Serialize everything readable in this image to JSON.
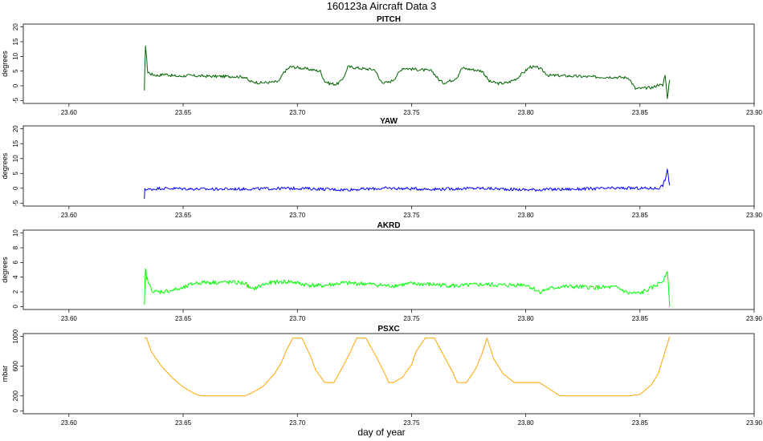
{
  "figure": {
    "title": "160123a   Aircraft Data 3",
    "xlabel": "day of year"
  },
  "chart_data": [
    {
      "type": "line",
      "title": "PITCH",
      "ylabel": "degrees",
      "color": "#006400",
      "xlim": [
        23.58,
        23.9
      ],
      "ylim": [
        -6,
        21
      ],
      "yticks": [
        -5,
        0,
        5,
        10,
        15,
        20
      ],
      "xticks": [
        23.6,
        23.65,
        23.7,
        23.75,
        23.8,
        23.85,
        23.9
      ],
      "noise": 0.5,
      "series": [
        {
          "x": [
            23.633,
            23.6335,
            23.634,
            23.6345,
            23.635,
            23.636,
            23.637,
            23.639,
            23.642,
            23.645,
            23.648,
            23.652,
            23.658,
            23.665,
            23.672,
            23.677,
            23.679,
            23.684,
            23.689,
            23.692,
            23.693,
            23.694,
            23.697,
            23.702,
            23.706,
            23.71,
            23.712,
            23.714,
            23.717,
            23.719,
            23.721,
            23.722,
            23.725,
            23.729,
            23.734,
            23.736,
            23.738,
            23.74,
            23.742,
            23.744,
            23.746,
            23.747,
            23.75,
            23.755,
            23.759,
            23.762,
            23.764,
            23.766,
            23.768,
            23.77,
            23.771,
            23.772,
            23.774,
            23.777,
            23.781,
            23.784,
            23.788,
            23.792,
            23.796,
            23.802,
            23.806,
            23.81,
            23.813,
            23.82,
            23.83,
            23.838,
            23.843,
            23.845,
            23.848,
            23.852,
            23.856,
            23.858,
            23.86,
            23.861,
            23.862,
            23.863
          ],
          "y": [
            -2,
            14,
            9,
            4.5,
            4.5,
            4,
            3.8,
            3.5,
            4,
            3.5,
            3.2,
            3.5,
            3.3,
            3.2,
            3.2,
            3.0,
            1.5,
            1.0,
            1.2,
            1.5,
            3.0,
            4.5,
            6.5,
            6.0,
            5.5,
            5.0,
            1.5,
            0.8,
            0.5,
            1.5,
            4.0,
            6.5,
            6.2,
            5.8,
            5.5,
            2.0,
            1.0,
            1.2,
            2.0,
            4.0,
            6.0,
            6.0,
            5.7,
            5.4,
            5.0,
            2.0,
            1.0,
            1.5,
            2.0,
            3.0,
            4.5,
            6.0,
            5.8,
            5.5,
            5.0,
            1.5,
            0.8,
            1.0,
            2.5,
            6.5,
            6.0,
            3.5,
            3.5,
            3.3,
            3.0,
            3.0,
            2.8,
            2.8,
            -1,
            -0.8,
            -0.5,
            0.5,
            0,
            4,
            -4,
            2
          ]
        }
      ]
    },
    {
      "type": "line",
      "title": "YAW",
      "ylabel": "degrees",
      "color": "#0000ff",
      "xlim": [
        23.58,
        23.9
      ],
      "ylim": [
        -6,
        21
      ],
      "yticks": [
        -5,
        0,
        5,
        10,
        15,
        20
      ],
      "xticks": [
        23.6,
        23.65,
        23.7,
        23.75,
        23.8,
        23.85,
        23.9
      ],
      "noise": 0.5,
      "series": [
        {
          "x": [
            23.633,
            23.6332,
            23.634,
            23.64,
            23.66,
            23.68,
            23.7,
            23.72,
            23.74,
            23.76,
            23.78,
            23.8,
            23.82,
            23.84,
            23.855,
            23.858,
            23.86,
            23.861,
            23.862,
            23.863
          ],
          "y": [
            -4,
            0,
            -0.5,
            0,
            -0.3,
            -0.2,
            0,
            -0.5,
            0,
            -0.3,
            0,
            -0.5,
            -0.3,
            0,
            0,
            0,
            1,
            3,
            6,
            1
          ]
        }
      ]
    },
    {
      "type": "line",
      "title": "AKRD",
      "ylabel": "degrees",
      "color": "#00ff00",
      "xlim": [
        23.58,
        23.9
      ],
      "ylim": [
        -0.4,
        10.4
      ],
      "yticks": [
        0,
        2,
        4,
        6,
        8,
        10
      ],
      "xticks": [
        23.6,
        23.65,
        23.7,
        23.75,
        23.8,
        23.85,
        23.9
      ],
      "noise": 0.3,
      "series": [
        {
          "x": [
            23.633,
            23.6335,
            23.634,
            23.635,
            23.637,
            23.64,
            23.645,
            23.65,
            23.655,
            23.66,
            23.67,
            23.677,
            23.68,
            23.685,
            23.69,
            23.697,
            23.703,
            23.71,
            23.715,
            23.72,
            23.73,
            23.74,
            23.75,
            23.76,
            23.77,
            23.78,
            23.79,
            23.8,
            23.806,
            23.81,
            23.815,
            23.82,
            23.83,
            23.84,
            23.845,
            23.85,
            23.855,
            23.86,
            23.862,
            23.863
          ],
          "y": [
            0,
            5,
            4,
            3,
            2,
            2,
            2.2,
            2.5,
            3.2,
            3.3,
            3.3,
            3.2,
            2.3,
            3.0,
            3.3,
            3.4,
            3.0,
            2.8,
            3.0,
            3.2,
            3.1,
            2.8,
            3.1,
            3.0,
            2.8,
            3.0,
            2.9,
            3.0,
            2.0,
            2.4,
            2.7,
            2.7,
            2.6,
            2.6,
            1.8,
            1.8,
            2.5,
            3.5,
            5,
            0
          ]
        }
      ]
    },
    {
      "type": "line",
      "title": "PSXC",
      "ylabel": "mbar",
      "color": "#ffa500",
      "xlim": [
        23.58,
        23.9
      ],
      "ylim": [
        -40,
        1040
      ],
      "yticks": [
        0,
        200,
        600,
        1000
      ],
      "ytick_labels": [
        "0",
        "200",
        "600",
        "1000"
      ],
      "xticks": [
        23.6,
        23.65,
        23.7,
        23.75,
        23.8,
        23.85,
        23.9
      ],
      "noise": 0,
      "series": [
        {
          "x": [
            23.633,
            23.634,
            23.636,
            23.64,
            23.645,
            23.65,
            23.655,
            23.658,
            23.665,
            23.67,
            23.677,
            23.68,
            23.685,
            23.69,
            23.693,
            23.695,
            23.698,
            23.702,
            23.706,
            23.708,
            23.712,
            23.716,
            23.72,
            23.723,
            23.726,
            23.73,
            23.735,
            23.738,
            23.74,
            23.742,
            23.746,
            23.75,
            23.752,
            23.756,
            23.76,
            23.764,
            23.768,
            23.77,
            23.774,
            23.778,
            23.781,
            23.783,
            23.786,
            23.79,
            23.795,
            23.8,
            23.806,
            23.81,
            23.815,
            23.82,
            23.83,
            23.84,
            23.845,
            23.85,
            23.855,
            23.858,
            23.86,
            23.862,
            23.863
          ],
          "y": [
            980,
            980,
            800,
            620,
            450,
            320,
            230,
            200,
            200,
            200,
            200,
            240,
            330,
            500,
            650,
            800,
            980,
            980,
            720,
            550,
            380,
            380,
            600,
            780,
            980,
            980,
            700,
            520,
            380,
            380,
            450,
            620,
            800,
            980,
            980,
            750,
            520,
            380,
            380,
            560,
            780,
            980,
            700,
            500,
            380,
            380,
            380,
            300,
            200,
            200,
            200,
            200,
            200,
            220,
            350,
            500,
            700,
            900,
            1000
          ]
        }
      ]
    }
  ]
}
